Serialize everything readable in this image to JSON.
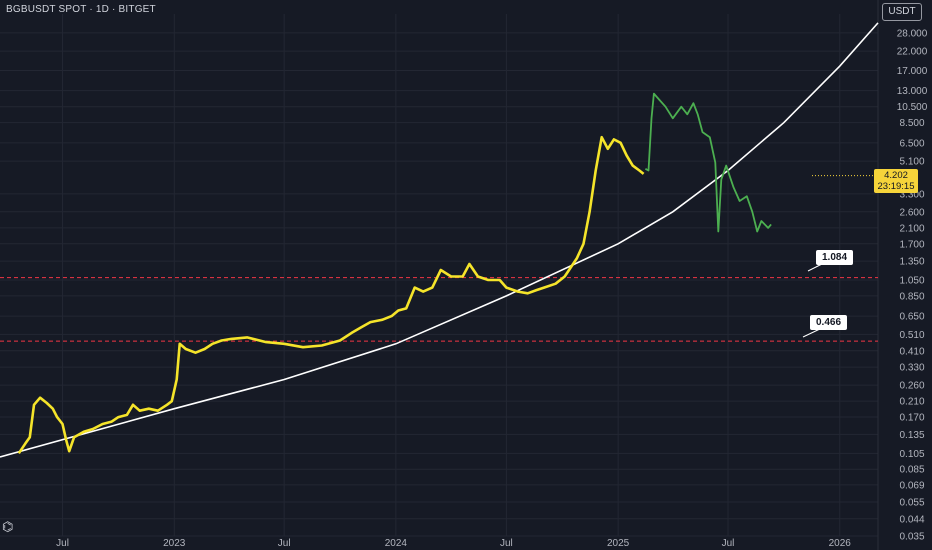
{
  "header": {
    "title": "BGBUSDT SPOT · 1D · BITGET"
  },
  "unit_button": "USDT",
  "price_label": {
    "price": "4.202",
    "countdown": "23:19:15"
  },
  "logo_icon": "tradingview-logo-icon",
  "colors": {
    "background": "#161a25",
    "grid": "#232733",
    "yellow_series": "#f5e42a",
    "green_series": "#4caf50",
    "curve": "#ffffff",
    "support": "#f23645"
  },
  "chart_data": {
    "type": "line",
    "scale": "log",
    "xlim": [
      "2022-03-20",
      "2026-03-05"
    ],
    "ylim": [
      0.035,
      36
    ],
    "y_ticks": [
      "28.000",
      "22.000",
      "17.000",
      "13.000",
      "10.500",
      "8.500",
      "6.500",
      "5.100",
      "3.300",
      "2.600",
      "2.100",
      "1.700",
      "1.350",
      "1.050",
      "0.850",
      "0.650",
      "0.510",
      "0.410",
      "0.330",
      "0.260",
      "0.210",
      "0.170",
      "0.135",
      "0.105",
      "0.085",
      "0.069",
      "0.055",
      "0.044",
      "0.035"
    ],
    "x_ticks": [
      {
        "date": "2022-07-01",
        "label": "Jul"
      },
      {
        "date": "2023-01-01",
        "label": "2023"
      },
      {
        "date": "2023-07-01",
        "label": "Jul"
      },
      {
        "date": "2024-01-01",
        "label": "2024"
      },
      {
        "date": "2024-07-01",
        "label": "Jul"
      },
      {
        "date": "2025-01-01",
        "label": "2025"
      },
      {
        "date": "2025-07-01",
        "label": "Jul"
      },
      {
        "date": "2026-01-01",
        "label": "2026"
      }
    ],
    "grid": true,
    "series": [
      {
        "color": "#f5e42a",
        "points": [
          [
            "2022-04-20",
            0.105
          ],
          [
            "2022-05-01",
            0.12
          ],
          [
            "2022-05-08",
            0.13
          ],
          [
            "2022-05-15",
            0.2
          ],
          [
            "2022-05-25",
            0.22
          ],
          [
            "2022-06-05",
            0.205
          ],
          [
            "2022-06-15",
            0.19
          ],
          [
            "2022-06-22",
            0.17
          ],
          [
            "2022-07-01",
            0.155
          ],
          [
            "2022-07-07",
            0.125
          ],
          [
            "2022-07-12",
            0.108
          ],
          [
            "2022-07-20",
            0.13
          ],
          [
            "2022-08-05",
            0.14
          ],
          [
            "2022-08-20",
            0.145
          ],
          [
            "2022-09-05",
            0.155
          ],
          [
            "2022-09-20",
            0.16
          ],
          [
            "2022-10-01",
            0.17
          ],
          [
            "2022-10-15",
            0.175
          ],
          [
            "2022-10-25",
            0.2
          ],
          [
            "2022-11-05",
            0.185
          ],
          [
            "2022-11-20",
            0.19
          ],
          [
            "2022-12-05",
            0.185
          ],
          [
            "2022-12-20",
            0.2
          ],
          [
            "2022-12-28",
            0.21
          ],
          [
            "2023-01-05",
            0.28
          ],
          [
            "2023-01-10",
            0.45
          ],
          [
            "2023-01-20",
            0.42
          ],
          [
            "2023-02-05",
            0.4
          ],
          [
            "2023-02-20",
            0.42
          ],
          [
            "2023-03-05",
            0.45
          ],
          [
            "2023-03-20",
            0.47
          ],
          [
            "2023-04-05",
            0.48
          ],
          [
            "2023-05-01",
            0.49
          ],
          [
            "2023-06-01",
            0.46
          ],
          [
            "2023-07-01",
            0.45
          ],
          [
            "2023-08-01",
            0.43
          ],
          [
            "2023-09-01",
            0.44
          ],
          [
            "2023-10-01",
            0.47
          ],
          [
            "2023-10-20",
            0.52
          ],
          [
            "2023-11-05",
            0.56
          ],
          [
            "2023-11-20",
            0.6
          ],
          [
            "2023-12-10",
            0.62
          ],
          [
            "2023-12-25",
            0.65
          ],
          [
            "2024-01-05",
            0.7
          ],
          [
            "2024-01-18",
            0.72
          ],
          [
            "2024-02-01",
            0.95
          ],
          [
            "2024-02-15",
            0.9
          ],
          [
            "2024-03-01",
            0.95
          ],
          [
            "2024-03-15",
            1.2
          ],
          [
            "2024-04-01",
            1.1
          ],
          [
            "2024-04-20",
            1.1
          ],
          [
            "2024-05-01",
            1.3
          ],
          [
            "2024-05-15",
            1.1
          ],
          [
            "2024-06-01",
            1.05
          ],
          [
            "2024-06-20",
            1.05
          ],
          [
            "2024-07-01",
            0.95
          ],
          [
            "2024-07-20",
            0.9
          ],
          [
            "2024-08-05",
            0.88
          ],
          [
            "2024-08-20",
            0.92
          ],
          [
            "2024-09-01",
            0.95
          ],
          [
            "2024-09-20",
            1.0
          ],
          [
            "2024-10-05",
            1.1
          ],
          [
            "2024-10-25",
            1.4
          ],
          [
            "2024-11-05",
            1.7
          ],
          [
            "2024-11-15",
            2.6
          ],
          [
            "2024-11-25",
            4.5
          ],
          [
            "2024-12-05",
            7.0
          ],
          [
            "2024-12-15",
            6.0
          ],
          [
            "2024-12-25",
            6.8
          ],
          [
            "2025-01-05",
            6.5
          ],
          [
            "2025-01-15",
            5.5
          ],
          [
            "2025-01-25",
            4.8
          ],
          [
            "2025-02-05",
            4.5
          ],
          [
            "2025-02-12",
            4.3
          ]
        ]
      },
      {
        "color": "#4caf50",
        "points": [
          [
            "2025-02-15",
            4.6
          ],
          [
            "2025-02-20",
            4.5
          ],
          [
            "2025-02-25",
            9.0
          ],
          [
            "2025-03-01",
            12.5
          ],
          [
            "2025-03-10",
            11.5
          ],
          [
            "2025-03-20",
            10.5
          ],
          [
            "2025-04-01",
            9.0
          ],
          [
            "2025-04-15",
            10.5
          ],
          [
            "2025-04-25",
            9.5
          ],
          [
            "2025-05-05",
            11.0
          ],
          [
            "2025-05-12",
            9.5
          ],
          [
            "2025-05-20",
            7.5
          ],
          [
            "2025-06-01",
            7.0
          ],
          [
            "2025-06-10",
            5.0
          ],
          [
            "2025-06-15",
            2.0
          ],
          [
            "2025-06-20",
            4.0
          ],
          [
            "2025-06-28",
            4.8
          ],
          [
            "2025-07-10",
            3.6
          ],
          [
            "2025-07-20",
            3.0
          ],
          [
            "2025-08-01",
            3.2
          ],
          [
            "2025-08-10",
            2.6
          ],
          [
            "2025-08-18",
            2.0
          ],
          [
            "2025-08-25",
            2.3
          ],
          [
            "2025-09-05",
            2.1
          ],
          [
            "2025-09-10",
            2.2
          ]
        ]
      }
    ],
    "trend_curve": {
      "color": "#ffffff",
      "points": [
        [
          "2022-03-20",
          0.1
        ],
        [
          "2023-01-01",
          0.19
        ],
        [
          "2023-07-01",
          0.28
        ],
        [
          "2024-01-01",
          0.45
        ],
        [
          "2024-07-01",
          0.85
        ],
        [
          "2025-01-01",
          1.7
        ],
        [
          "2025-04-01",
          2.6
        ],
        [
          "2025-07-01",
          4.5
        ],
        [
          "2025-10-01",
          8.5
        ],
        [
          "2026-01-01",
          18.0
        ],
        [
          "2026-03-05",
          32.0
        ]
      ]
    },
    "horizontal_levels": [
      {
        "price": 1.084,
        "label": "1.084",
        "color": "#f23645",
        "style": "dashed"
      },
      {
        "price": 0.466,
        "label": "0.466",
        "color": "#f23645",
        "style": "dashed"
      }
    ]
  }
}
